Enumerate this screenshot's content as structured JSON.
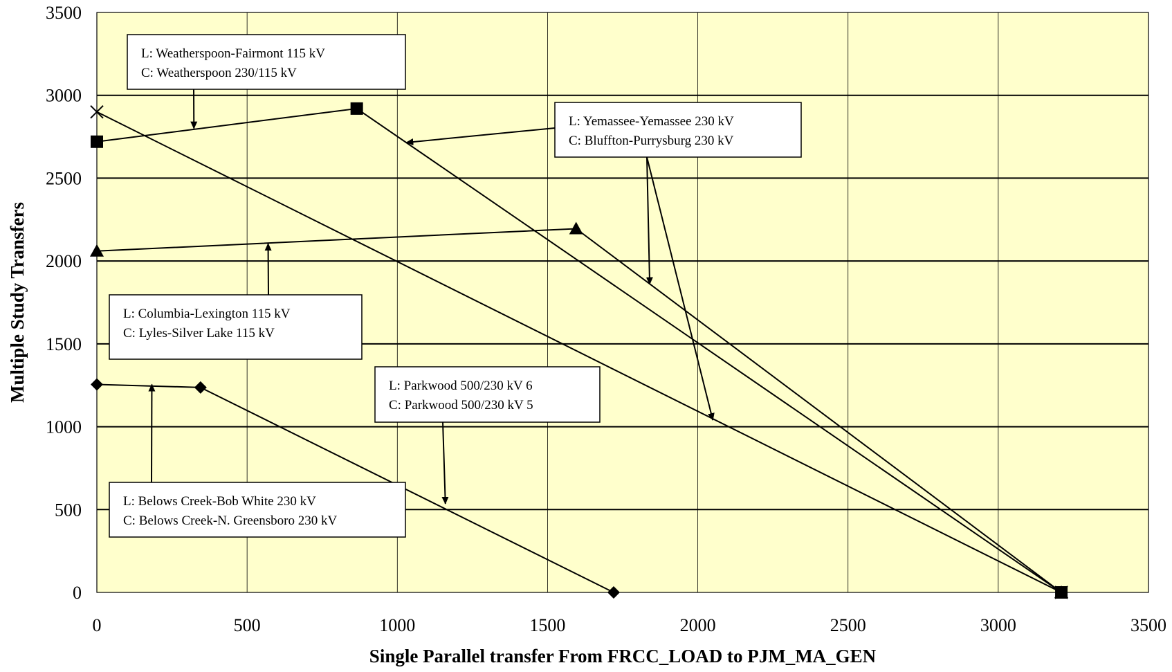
{
  "chart_data": {
    "type": "line",
    "xlabel": "Single Parallel transfer From FRCC_LOAD to PJM_MA_GEN",
    "ylabel": "Multiple Study Transfers",
    "xlim": [
      0,
      3500
    ],
    "ylim": [
      0,
      3500
    ],
    "x_ticks": [
      0,
      500,
      1000,
      1500,
      2000,
      2500,
      3000,
      3500
    ],
    "y_ticks": [
      0,
      500,
      1000,
      1500,
      2000,
      2500,
      3000,
      3500
    ],
    "grid": true,
    "background_color": "#ffffcc",
    "series": [
      {
        "marker": "square",
        "x": [
          0,
          865,
          3210
        ],
        "y": [
          2720,
          2920,
          0
        ]
      },
      {
        "marker": "x",
        "x": [
          0,
          3210
        ],
        "y": [
          2900,
          0
        ]
      },
      {
        "marker": "triangle",
        "x": [
          0,
          1595,
          3210
        ],
        "y": [
          2060,
          2195,
          0
        ]
      },
      {
        "marker": "diamond",
        "x": [
          0,
          345,
          1720
        ],
        "y": [
          1255,
          1237,
          0
        ]
      }
    ],
    "annotations": [
      {
        "lines": [
          "L:  Weatherspoon-Fairmont 115 kV",
          "C:  Weatherspoon 230/115 kV"
        ],
        "arrows_to": [
          [
            323,
            2800
          ]
        ]
      },
      {
        "lines": [
          "L:  Yemassee-Yemassee 230 kV",
          "C:  Bluffton-Purrysburg 230 kV"
        ],
        "arrows_to": [
          [
            1030,
            2715
          ],
          [
            1840,
            1860
          ],
          [
            2050,
            1040
          ]
        ]
      },
      {
        "lines": [
          "L:  Columbia-Lexington 115 kV",
          "C:  Lyles-Silver Lake 115 kV"
        ],
        "arrows_to": [
          [
            570,
            2105
          ]
        ]
      },
      {
        "lines": [
          "L:  Parkwood 500/230 kV 6",
          "C:  Parkwood 500/230 kV 5"
        ],
        "arrows_to": [
          [
            1160,
            535
          ]
        ]
      },
      {
        "lines": [
          "L:  Belows Creek-Bob White 230 kV",
          "C:  Belows Creek-N. Greensboro 230 kV"
        ],
        "arrows_to": [
          [
            183,
            1255
          ]
        ]
      }
    ]
  }
}
